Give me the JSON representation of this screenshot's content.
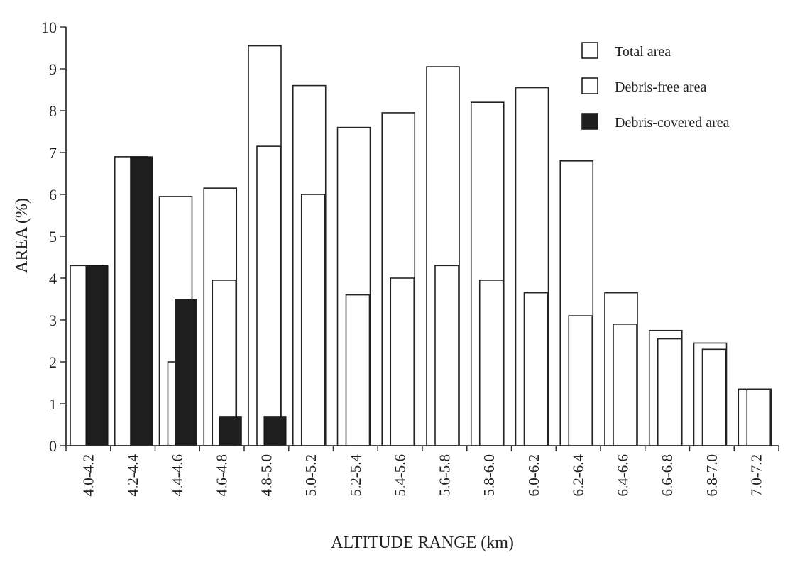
{
  "chart_data": {
    "type": "bar",
    "xlabel": "ALTITUDE RANGE (km)",
    "ylabel": "AREA (%)",
    "ylim": [
      0,
      10
    ],
    "yticks": [
      "0",
      "1",
      "2",
      "3",
      "4",
      "5",
      "6",
      "7",
      "8",
      "9",
      "10"
    ],
    "categories": [
      "4.0-4.2",
      "4.2-4.4",
      "4.4-4.6",
      "4.6-4.8",
      "4.8-5.0",
      "5.0-5.2",
      "5.2-5.4",
      "5.4-5.6",
      "5.6-5.8",
      "5.8-6.0",
      "6.0-6.2",
      "6.2-6.4",
      "6.4-6.6",
      "6.6-6.8",
      "6.8-7.0",
      "7.0-7.2"
    ],
    "series": [
      {
        "name": "Total area",
        "color": "#ffffff",
        "values": [
          4.3,
          6.9,
          5.95,
          6.15,
          9.55,
          8.6,
          7.6,
          7.95,
          9.05,
          8.2,
          8.55,
          6.8,
          3.65,
          2.75,
          2.45,
          1.35
        ]
      },
      {
        "name": "Debris-free area",
        "color": "#ffffff",
        "values": [
          0,
          0,
          2.0,
          3.95,
          7.15,
          6.0,
          3.6,
          4.0,
          4.3,
          3.95,
          3.65,
          3.1,
          2.9,
          2.55,
          2.3,
          1.35
        ]
      },
      {
        "name": "Debris-covered area",
        "color": "#1e1e1e",
        "values": [
          4.3,
          6.9,
          3.5,
          0.7,
          0.7,
          0,
          0,
          0,
          0,
          0,
          0,
          0,
          0,
          0,
          0,
          0
        ]
      }
    ],
    "grid": false,
    "legend_position": "top-right"
  }
}
